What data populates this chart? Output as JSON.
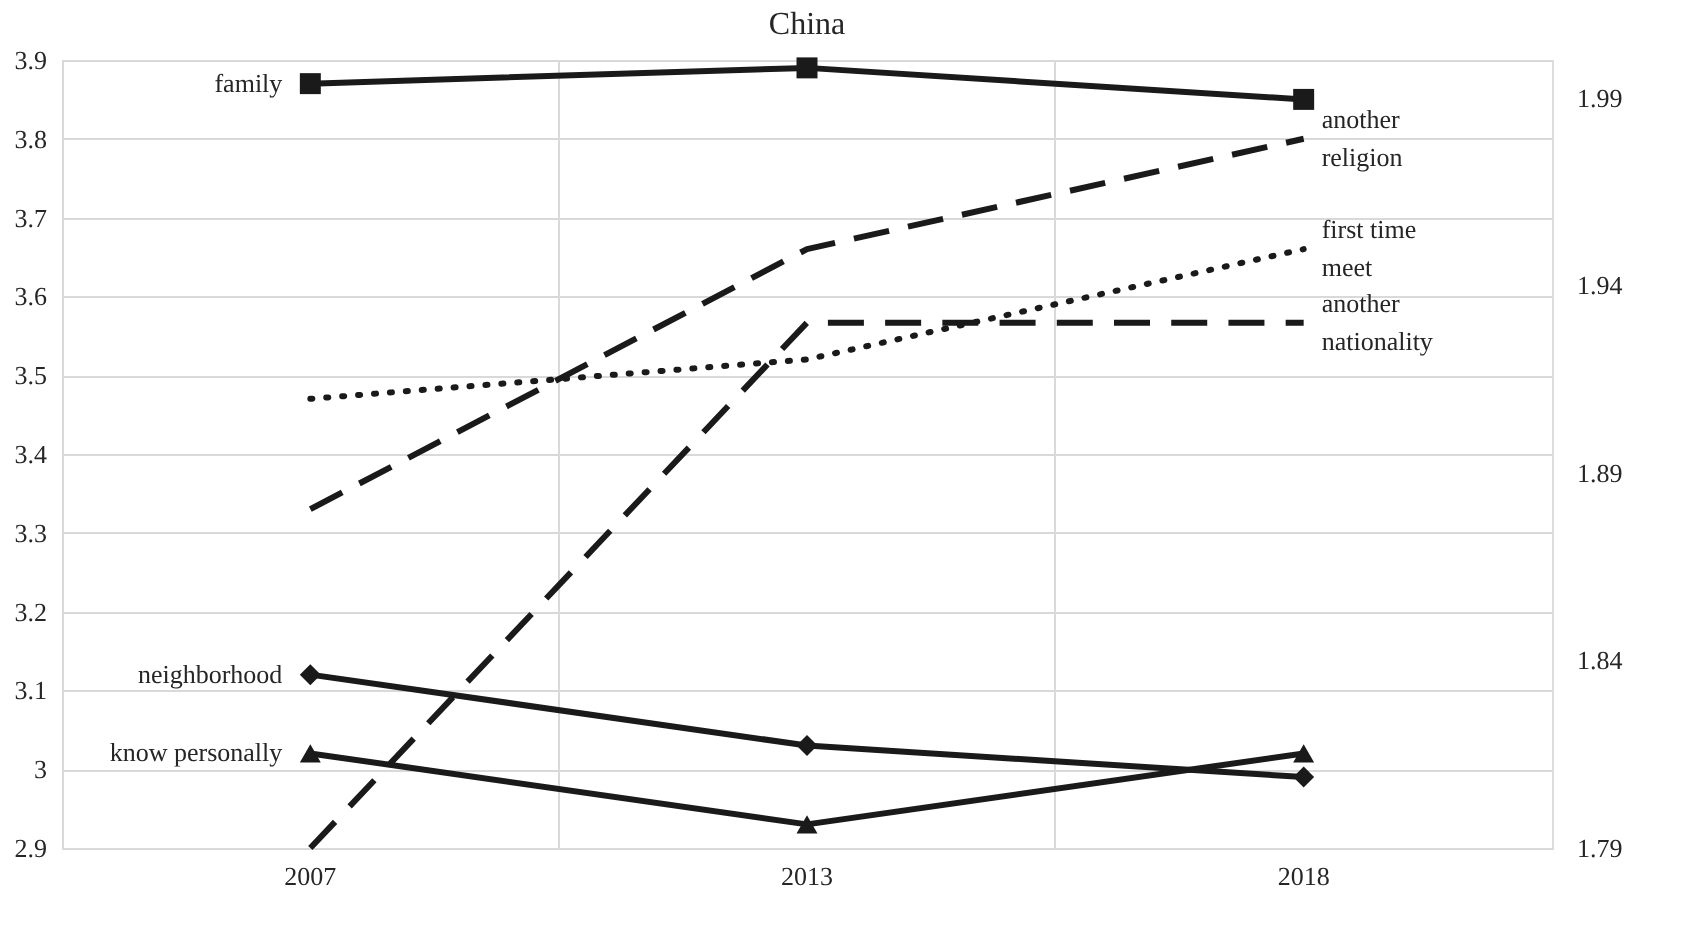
{
  "chart_data": {
    "type": "line",
    "title": "China",
    "categories": [
      "2007",
      "2013",
      "2018"
    ],
    "series": [
      {
        "name": "family",
        "color": "#1a1a1a",
        "values": [
          3.87,
          3.89,
          3.85
        ],
        "marker": "square",
        "line_style": "solid"
      },
      {
        "name": "another religion",
        "color": "#1a1a1a",
        "values": [
          3.33,
          3.66,
          3.8
        ],
        "marker": "none",
        "line_style": "dashed"
      },
      {
        "name": "first time meet",
        "color": "#1a1a1a",
        "values": [
          3.47,
          3.52,
          3.66
        ],
        "marker": "none",
        "line_style": "dotted"
      },
      {
        "name": "another nationality",
        "color": "#1a1a1a",
        "values": [
          1.79,
          1.93,
          1.93
        ],
        "marker": "none",
        "line_style": "dashed",
        "axis": "y2"
      },
      {
        "name": "neighborhood",
        "color": "#1a1a1a",
        "values": [
          3.12,
          3.03,
          2.99
        ],
        "marker": "diamond",
        "line_style": "solid"
      },
      {
        "name": "know personally",
        "color": "#1a1a1a",
        "values": [
          3.02,
          2.93,
          3.02
        ],
        "marker": "triangle",
        "line_style": "solid"
      }
    ],
    "ylim": [
      2.9,
      3.9
    ],
    "yticks": [
      2.9,
      3.0,
      3.1,
      3.2,
      3.3,
      3.4,
      3.5,
      3.6,
      3.7,
      3.8,
      3.9
    ],
    "y2lim": [
      1.79,
      2.0
    ],
    "y2ticks": [
      1.79,
      1.84,
      1.89,
      1.94,
      1.99
    ],
    "grid": true,
    "legend": false
  }
}
